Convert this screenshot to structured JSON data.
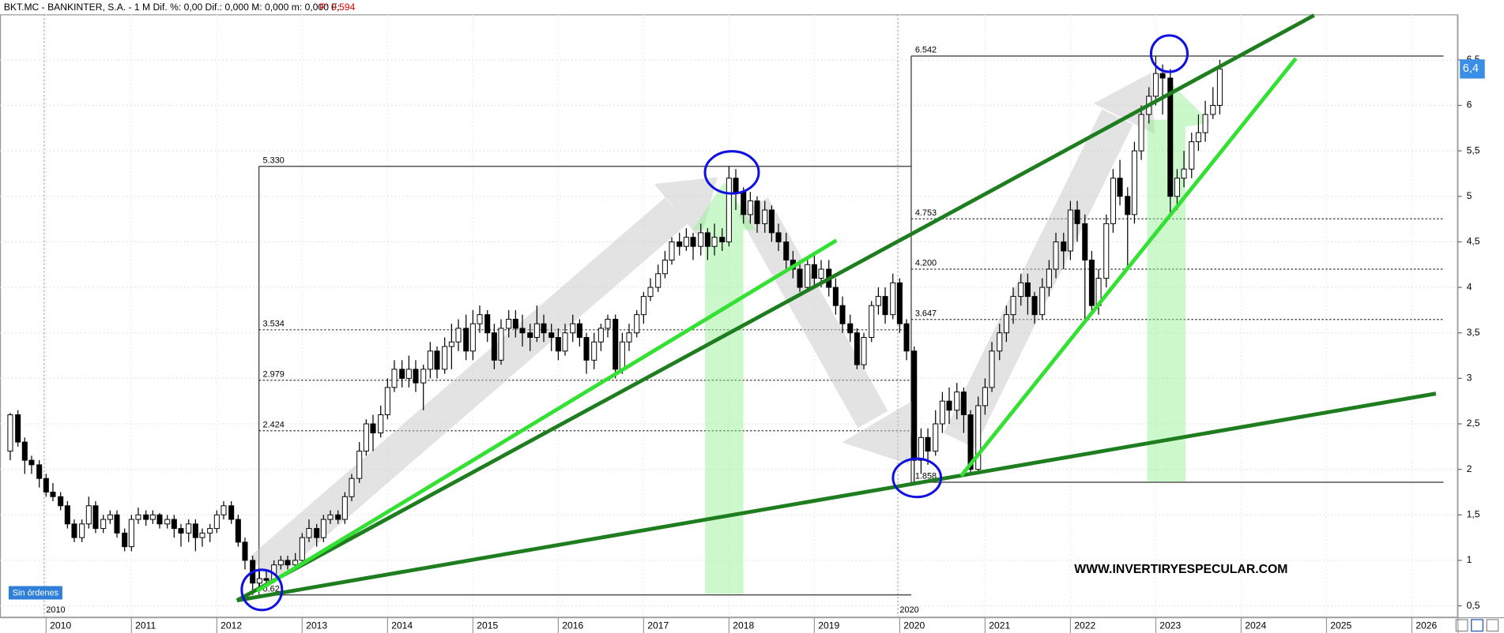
{
  "chart_data": {
    "type": "candlestick",
    "title": "BKT.MC - BANKINTER, S.A. -  1 M  Dif. %: 0,00  Dif.: 0,000  M: 0,000  m: 0,000  F:",
    "price_info": "P: 0,594",
    "watermark": "WWW.INVERTIRYESPECULAR.COM",
    "status": "Sin órdenes",
    "up_color": "#ffffff",
    "down_color": "#000000",
    "grid": true,
    "xlim": [
      2009.46,
      2026.54
    ],
    "ylim": [
      0.37,
      7.0
    ],
    "xticks": [
      2010,
      2011,
      2012,
      2013,
      2014,
      2015,
      2016,
      2017,
      2018,
      2019,
      2020,
      2021,
      2022,
      2023,
      2024,
      2025,
      2026
    ],
    "yticks": [
      {
        "value": 0.5,
        "label": "0,5"
      },
      1,
      {
        "value": 1.5,
        "label": "1,5"
      },
      2,
      {
        "value": 2.5,
        "label": "2,5"
      },
      3,
      {
        "value": 3.5,
        "label": "3,5"
      },
      4,
      {
        "value": 4.5,
        "label": "4,5"
      },
      5,
      {
        "value": 5.5,
        "label": "5,5"
      },
      6,
      {
        "value": 6.5,
        "label": "6,5"
      }
    ],
    "period_markers": [
      2010,
      2020
    ],
    "last_price": {
      "value": 6.4,
      "label": "6,4"
    },
    "levels_2012": [
      {
        "value": 5.33,
        "label": "5.330"
      },
      3.534,
      2.979,
      2.424,
      {
        "value": 0.62,
        "label": "0.62"
      }
    ],
    "levels_2020": [
      6.542,
      4.753,
      {
        "value": 4.2,
        "label": "4.200"
      },
      3.647,
      1.858
    ],
    "x": [
      2009.58,
      2009.67,
      2009.75,
      2009.83,
      2009.92,
      2010.0,
      2010.08,
      2010.17,
      2010.25,
      2010.33,
      2010.42,
      2010.5,
      2010.58,
      2010.67,
      2010.75,
      2010.83,
      2010.92,
      2011.0,
      2011.08,
      2011.17,
      2011.25,
      2011.33,
      2011.42,
      2011.5,
      2011.58,
      2011.67,
      2011.75,
      2011.83,
      2011.92,
      2012.0,
      2012.08,
      2012.17,
      2012.25,
      2012.33,
      2012.42,
      2012.5,
      2012.58,
      2012.67,
      2012.75,
      2012.83,
      2012.92,
      2013.0,
      2013.08,
      2013.17,
      2013.25,
      2013.33,
      2013.42,
      2013.5,
      2013.58,
      2013.67,
      2013.75,
      2013.83,
      2013.92,
      2014.0,
      2014.08,
      2014.17,
      2014.25,
      2014.33,
      2014.42,
      2014.5,
      2014.58,
      2014.67,
      2014.75,
      2014.83,
      2014.92,
      2015.0,
      2015.08,
      2015.17,
      2015.25,
      2015.33,
      2015.42,
      2015.5,
      2015.58,
      2015.67,
      2015.75,
      2015.83,
      2015.92,
      2016.0,
      2016.08,
      2016.17,
      2016.25,
      2016.33,
      2016.42,
      2016.5,
      2016.58,
      2016.67,
      2016.75,
      2016.83,
      2016.92,
      2017.0,
      2017.08,
      2017.17,
      2017.25,
      2017.33,
      2017.42,
      2017.5,
      2017.58,
      2017.67,
      2017.75,
      2017.83,
      2017.92,
      2018.0,
      2018.08,
      2018.17,
      2018.25,
      2018.33,
      2018.42,
      2018.5,
      2018.58,
      2018.67,
      2018.75,
      2018.83,
      2018.92,
      2019.0,
      2019.08,
      2019.17,
      2019.25,
      2019.33,
      2019.42,
      2019.5,
      2019.58,
      2019.67,
      2019.75,
      2019.83,
      2019.92,
      2020.0,
      2020.08,
      2020.17,
      2020.25,
      2020.33,
      2020.42,
      2020.5,
      2020.58,
      2020.67,
      2020.75,
      2020.83,
      2020.92,
      2021.0,
      2021.08,
      2021.17,
      2021.25,
      2021.33,
      2021.42,
      2021.5,
      2021.58,
      2021.67,
      2021.75,
      2021.83,
      2021.92,
      2022.0,
      2022.08,
      2022.17,
      2022.25,
      2022.33,
      2022.42,
      2022.5,
      2022.58,
      2022.67,
      2022.75,
      2022.83,
      2022.92,
      2023.0,
      2023.08,
      2023.17,
      2023.25,
      2023.33,
      2023.42,
      2023.5,
      2023.58,
      2023.67,
      2023.75
    ],
    "open": [
      2.2,
      2.6,
      2.3,
      2.1,
      2.05,
      1.9,
      1.75,
      1.7,
      1.6,
      1.4,
      1.25,
      1.4,
      1.6,
      1.35,
      1.45,
      1.5,
      1.3,
      1.15,
      1.45,
      1.5,
      1.45,
      1.5,
      1.4,
      1.45,
      1.35,
      1.3,
      1.4,
      1.25,
      1.3,
      1.35,
      1.5,
      1.6,
      1.45,
      1.2,
      1.0,
      0.75,
      0.8,
      0.78,
      0.95,
      1.0,
      0.95,
      1.0,
      1.25,
      1.35,
      1.25,
      1.45,
      1.5,
      1.45,
      1.7,
      1.9,
      2.2,
      2.5,
      2.4,
      2.6,
      2.9,
      3.1,
      3.0,
      3.1,
      2.95,
      3.1,
      3.3,
      3.1,
      3.35,
      3.4,
      3.55,
      3.3,
      3.6,
      3.7,
      3.5,
      3.2,
      3.55,
      3.65,
      3.55,
      3.5,
      3.45,
      3.6,
      3.5,
      3.45,
      3.3,
      3.5,
      3.6,
      3.45,
      3.2,
      3.4,
      3.55,
      3.65,
      3.1,
      3.4,
      3.5,
      3.7,
      3.9,
      4.0,
      4.15,
      4.3,
      4.5,
      4.45,
      4.55,
      4.45,
      4.6,
      4.45,
      4.55,
      4.5,
      5.2,
      5.05,
      4.8,
      4.95,
      4.7,
      4.85,
      4.6,
      4.5,
      4.3,
      4.2,
      4.0,
      4.25,
      4.1,
      4.2,
      4.0,
      3.8,
      3.6,
      3.5,
      3.15,
      3.45,
      3.8,
      3.9,
      3.7,
      4.05,
      3.6,
      3.3,
      2.1,
      2.35,
      2.2,
      2.5,
      2.75,
      2.65,
      2.85,
      2.6,
      2.0,
      2.7,
      2.9,
      3.3,
      3.5,
      3.7,
      3.9,
      4.05,
      3.9,
      3.7,
      4.0,
      4.2,
      4.5,
      4.4,
      4.85,
      4.7,
      4.3,
      3.8,
      4.1,
      4.7,
      5.2,
      5.0,
      4.8,
      5.5,
      5.9,
      6.1,
      6.35,
      6.3,
      5.0,
      5.2,
      5.3,
      5.6,
      5.7,
      5.9,
      6.0
    ],
    "high": [
      2.62,
      2.65,
      2.35,
      2.15,
      2.1,
      1.95,
      1.85,
      1.75,
      1.65,
      1.45,
      1.45,
      1.7,
      1.65,
      1.5,
      1.55,
      1.55,
      1.35,
      1.5,
      1.58,
      1.55,
      1.55,
      1.52,
      1.5,
      1.5,
      1.4,
      1.45,
      1.45,
      1.35,
      1.4,
      1.55,
      1.65,
      1.65,
      1.5,
      1.25,
      1.05,
      0.9,
      0.9,
      1.0,
      1.05,
      1.05,
      1.08,
      1.3,
      1.45,
      1.4,
      1.5,
      1.55,
      1.55,
      1.75,
      1.95,
      2.3,
      2.55,
      2.6,
      2.7,
      3.0,
      3.2,
      3.2,
      3.25,
      3.2,
      3.15,
      3.4,
      3.35,
      3.45,
      3.6,
      3.65,
      3.7,
      3.75,
      3.8,
      3.75,
      3.6,
      3.65,
      3.75,
      3.75,
      3.7,
      3.6,
      3.8,
      3.7,
      3.6,
      3.55,
      3.6,
      3.7,
      3.65,
      3.5,
      3.5,
      3.6,
      3.7,
      3.7,
      3.5,
      3.6,
      3.75,
      3.95,
      4.1,
      4.25,
      4.4,
      4.55,
      4.6,
      4.65,
      4.6,
      4.7,
      4.65,
      4.7,
      4.65,
      5.33,
      5.3,
      5.1,
      5.05,
      5.0,
      4.95,
      4.9,
      4.7,
      4.6,
      4.4,
      4.3,
      4.3,
      4.35,
      4.3,
      4.3,
      4.1,
      3.9,
      3.7,
      3.55,
      3.5,
      3.85,
      4.0,
      4.0,
      4.15,
      4.1,
      3.65,
      3.35,
      2.45,
      2.45,
      2.65,
      2.85,
      2.9,
      2.95,
      2.9,
      2.65,
      2.8,
      3.0,
      3.4,
      3.6,
      3.8,
      4.0,
      4.15,
      4.15,
      3.95,
      4.1,
      4.3,
      4.6,
      4.6,
      4.95,
      4.95,
      4.8,
      4.4,
      4.2,
      4.8,
      5.3,
      5.4,
      5.1,
      5.6,
      6.0,
      6.2,
      6.54,
      6.45,
      6.4,
      5.3,
      5.5,
      5.7,
      5.9,
      6.05,
      6.2,
      6.5
    ],
    "low": [
      2.1,
      2.25,
      1.95,
      1.95,
      1.8,
      1.7,
      1.65,
      1.55,
      1.35,
      1.2,
      1.2,
      1.35,
      1.3,
      1.3,
      1.4,
      1.25,
      1.1,
      1.1,
      1.4,
      1.38,
      1.4,
      1.35,
      1.35,
      1.25,
      1.15,
      1.2,
      1.1,
      1.15,
      1.2,
      1.3,
      1.45,
      1.4,
      1.15,
      0.9,
      0.62,
      0.68,
      0.7,
      0.75,
      0.9,
      0.9,
      0.9,
      0.95,
      1.2,
      1.15,
      1.2,
      1.4,
      1.4,
      1.4,
      1.65,
      1.85,
      2.15,
      2.2,
      2.35,
      2.55,
      2.85,
      2.9,
      2.9,
      2.85,
      2.65,
      3.0,
      3.0,
      3.05,
      3.1,
      3.3,
      3.2,
      3.2,
      3.5,
      3.4,
      3.1,
      3.15,
      3.45,
      3.45,
      3.35,
      3.3,
      3.4,
      3.4,
      3.3,
      3.2,
      3.25,
      3.4,
      3.35,
      3.05,
      3.1,
      3.3,
      3.45,
      3.0,
      3.05,
      3.3,
      3.45,
      3.6,
      3.85,
      3.95,
      4.1,
      4.25,
      4.35,
      4.4,
      4.3,
      4.35,
      4.3,
      4.35,
      4.4,
      4.45,
      4.85,
      4.7,
      4.7,
      4.6,
      4.6,
      4.5,
      4.4,
      4.2,
      4.1,
      3.95,
      3.95,
      4.0,
      4.0,
      3.9,
      3.7,
      3.5,
      3.4,
      3.1,
      3.1,
      3.4,
      3.7,
      3.6,
      3.65,
      3.5,
      3.2,
      1.86,
      1.95,
      2.05,
      2.15,
      2.4,
      2.5,
      2.55,
      2.4,
      1.95,
      1.95,
      2.6,
      2.85,
      3.2,
      3.4,
      3.6,
      3.8,
      3.7,
      3.6,
      3.65,
      3.9,
      4.1,
      4.2,
      4.3,
      4.5,
      3.65,
      3.7,
      3.7,
      4.0,
      4.6,
      4.9,
      4.2,
      4.7,
      5.4,
      5.8,
      6.0,
      5.9,
      4.8,
      4.85,
      5.1,
      5.2,
      5.5,
      5.6,
      5.85,
      5.9
    ],
    "close": [
      2.6,
      2.3,
      2.1,
      2.05,
      1.9,
      1.75,
      1.7,
      1.6,
      1.4,
      1.25,
      1.4,
      1.6,
      1.35,
      1.45,
      1.5,
      1.3,
      1.15,
      1.45,
      1.5,
      1.45,
      1.5,
      1.4,
      1.45,
      1.35,
      1.3,
      1.4,
      1.25,
      1.3,
      1.35,
      1.5,
      1.6,
      1.45,
      1.2,
      1.0,
      0.75,
      0.8,
      0.78,
      0.95,
      1.0,
      0.95,
      1.0,
      1.25,
      1.35,
      1.25,
      1.45,
      1.5,
      1.45,
      1.7,
      1.9,
      2.2,
      2.5,
      2.4,
      2.6,
      2.9,
      3.1,
      3.0,
      3.1,
      2.95,
      3.1,
      3.3,
      3.1,
      3.35,
      3.4,
      3.55,
      3.3,
      3.6,
      3.7,
      3.5,
      3.2,
      3.55,
      3.65,
      3.55,
      3.5,
      3.45,
      3.6,
      3.5,
      3.45,
      3.3,
      3.5,
      3.6,
      3.45,
      3.2,
      3.4,
      3.55,
      3.65,
      3.1,
      3.4,
      3.5,
      3.7,
      3.9,
      4.0,
      4.15,
      4.3,
      4.5,
      4.45,
      4.55,
      4.45,
      4.6,
      4.45,
      4.55,
      4.5,
      5.2,
      5.05,
      4.8,
      4.95,
      4.7,
      4.85,
      4.6,
      4.5,
      4.3,
      4.2,
      4.0,
      4.25,
      4.1,
      4.2,
      4.0,
      3.8,
      3.6,
      3.5,
      3.15,
      3.45,
      3.8,
      3.9,
      3.7,
      4.05,
      3.6,
      3.3,
      2.1,
      2.35,
      2.2,
      2.5,
      2.75,
      2.65,
      2.85,
      2.6,
      2.0,
      2.7,
      2.9,
      3.3,
      3.5,
      3.7,
      3.9,
      4.05,
      3.9,
      3.7,
      4.0,
      4.2,
      4.5,
      4.4,
      4.85,
      4.7,
      4.3,
      3.8,
      4.1,
      4.7,
      5.2,
      5.0,
      4.8,
      5.5,
      5.9,
      6.1,
      6.35,
      6.3,
      5.0,
      5.2,
      5.3,
      5.6,
      5.7,
      5.9,
      6.0,
      6.4
    ]
  }
}
